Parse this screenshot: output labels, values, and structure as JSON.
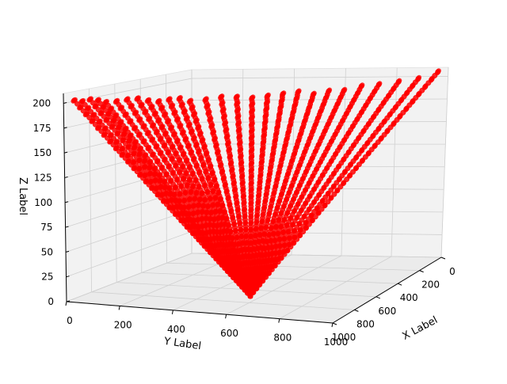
{
  "chart_data": {
    "type": "scatter",
    "projection": "3d",
    "title": "",
    "xlabel": "X Label",
    "ylabel": "Y Label",
    "zlabel": "Z Label",
    "xlim": [
      0,
      1000
    ],
    "ylim": [
      0,
      1000
    ],
    "zlim": [
      0,
      210
    ],
    "x_ticks": [
      "0",
      "200",
      "400",
      "600",
      "800",
      "1000"
    ],
    "y_ticks": [
      "0",
      "200",
      "400",
      "600",
      "800",
      "1000"
    ],
    "z_ticks": [
      "0",
      "25",
      "50",
      "75",
      "100",
      "125",
      "150",
      "175",
      "200"
    ],
    "grid": true,
    "marker": "o",
    "color": "#ff0000",
    "series": [
      {
        "apex": {
          "x": 700,
          "y": 560,
          "z": 0
        },
        "top_z_range": [
          198,
          206
        ],
        "x_range": [
          0,
          1000
        ],
        "y_range": [
          0,
          1000
        ],
        "top_y_points": [
          40,
          60,
          80,
          100,
          120,
          150,
          180,
          210,
          240,
          270,
          300,
          330,
          360,
          400,
          440,
          480,
          520,
          560,
          600,
          640,
          680,
          720,
          760,
          800,
          840,
          880,
          920,
          960
        ],
        "top_z_points": [
          204,
          203,
          205,
          204,
          202,
          203,
          205,
          206,
          204,
          203,
          205,
          206,
          203,
          204,
          206,
          205,
          203,
          204,
          205,
          206,
          202,
          204,
          203,
          205,
          204,
          203,
          202,
          205
        ],
        "top_x_points": [
          1000,
          980,
          960,
          940,
          920,
          900,
          880,
          860,
          840,
          820,
          800,
          780,
          760,
          720,
          680,
          640,
          600,
          560,
          520,
          480,
          440,
          400,
          360,
          300,
          240,
          160,
          80,
          0
        ],
        "points_per_ray": 60
      }
    ]
  }
}
